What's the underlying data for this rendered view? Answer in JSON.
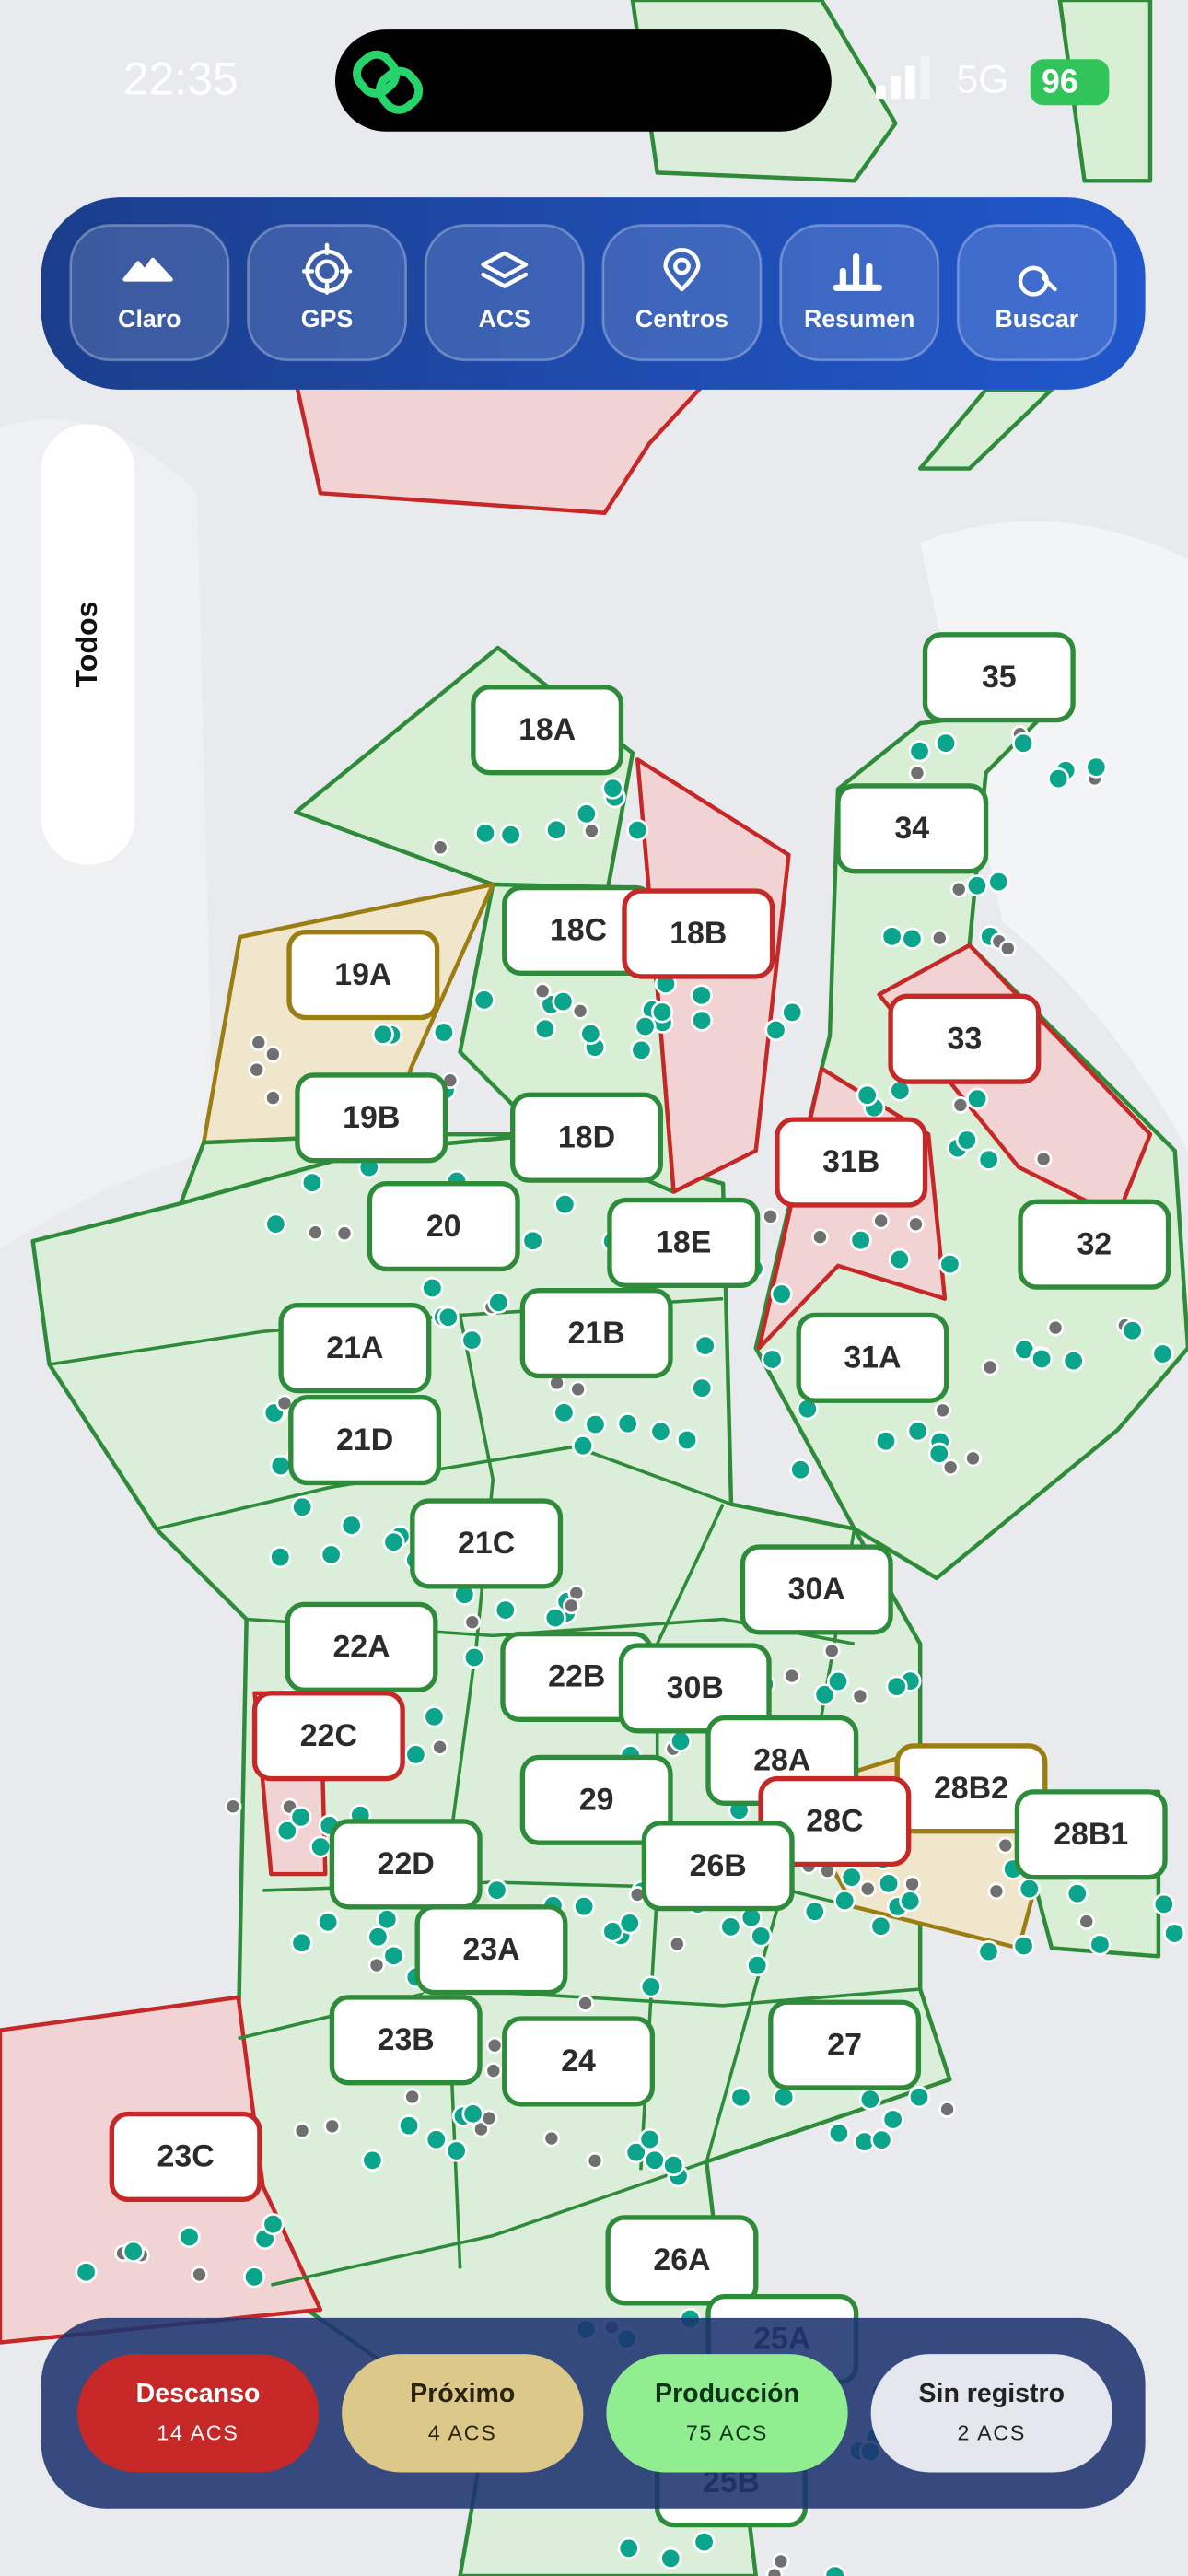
{
  "status_bar": {
    "time": "22:35",
    "network": "5G",
    "battery": "96"
  },
  "toolbar": {
    "buttons": [
      "Claro",
      "GPS",
      "ACS",
      "Centros",
      "Resumen",
      "Buscar"
    ]
  },
  "filter": "Todos",
  "zones": [
    "18A",
    "18C",
    "18B",
    "19A",
    "19B",
    "18D",
    "20",
    "18E",
    "21A",
    "21B",
    "21D",
    "21C",
    "35",
    "34",
    "33",
    "31B",
    "32",
    "31A",
    "30A",
    "22A",
    "22B",
    "30B",
    "22C",
    "28A",
    "28B2",
    "28B1",
    "28C",
    "29",
    "22D",
    "26B",
    "23A",
    "23B",
    "24",
    "27",
    "23C",
    "26A",
    "25A",
    "25B"
  ],
  "legend": [
    {
      "name": "Descanso",
      "count": "14 ACS"
    },
    {
      "name": "Próximo",
      "count": "4 ACS"
    },
    {
      "name": "Producción",
      "count": "75 ACS"
    },
    {
      "name": "Sin registro",
      "count": "2 ACS"
    }
  ]
}
